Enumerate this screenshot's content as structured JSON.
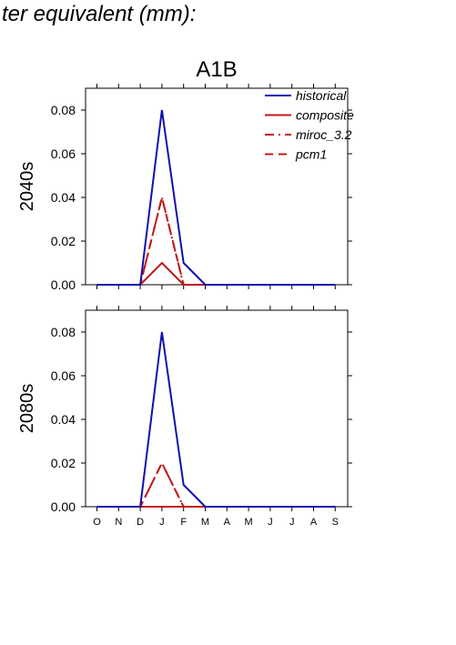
{
  "figure_title": "ter equivalent (mm):",
  "colors": {
    "historical": "#1010b0",
    "scenario": "#c01818",
    "axis": "#000000"
  },
  "chart_data": [
    {
      "type": "line",
      "title": "A1B",
      "ylabel": "2040s",
      "ylim": [
        0,
        0.09
      ],
      "yticks": [
        "0.00",
        "0.02",
        "0.04",
        "0.06",
        "0.08"
      ],
      "categories": [
        "O",
        "N",
        "D",
        "J",
        "F",
        "M",
        "A",
        "M",
        "J",
        "J",
        "A",
        "S"
      ],
      "show_xtick_labels": false,
      "legend": "top-right",
      "series": [
        {
          "name": "historical",
          "style": "solid",
          "color": "#1010b0",
          "values": [
            0,
            0,
            0,
            0.08,
            0.01,
            0,
            0,
            0,
            0,
            0,
            0,
            0
          ]
        },
        {
          "name": "composite",
          "style": "solid",
          "color": "#c01818",
          "values": [
            0,
            0,
            0,
            0.01,
            0,
            0,
            0,
            0,
            0,
            0,
            0,
            0
          ]
        },
        {
          "name": "miroc_3.2",
          "style": "dashdot",
          "color": "#c01818",
          "values": [
            0,
            0,
            0,
            0.04,
            0,
            0,
            0,
            0,
            0,
            0,
            0,
            0
          ]
        },
        {
          "name": "pcm1",
          "style": "dash",
          "color": "#c01818",
          "values": [
            0,
            0,
            0,
            0.04,
            0,
            0,
            0,
            0,
            0,
            0,
            0,
            0
          ]
        }
      ]
    },
    {
      "type": "line",
      "title": "",
      "ylabel": "2080s",
      "ylim": [
        0,
        0.09
      ],
      "yticks": [
        "0.00",
        "0.02",
        "0.04",
        "0.06",
        "0.08"
      ],
      "categories": [
        "O",
        "N",
        "D",
        "J",
        "F",
        "M",
        "A",
        "M",
        "J",
        "J",
        "A",
        "S"
      ],
      "show_xtick_labels": true,
      "legend": "none",
      "series": [
        {
          "name": "historical",
          "style": "solid",
          "color": "#1010b0",
          "values": [
            0,
            0,
            0,
            0.08,
            0.01,
            0,
            0,
            0,
            0,
            0,
            0,
            0
          ]
        },
        {
          "name": "composite",
          "style": "solid",
          "color": "#c01818",
          "values": [
            0,
            0,
            0,
            0,
            0,
            0,
            0,
            0,
            0,
            0,
            0,
            0
          ]
        },
        {
          "name": "miroc_3.2",
          "style": "dashdot",
          "color": "#c01818",
          "values": [
            0,
            0,
            0,
            0.02,
            0,
            0,
            0,
            0,
            0,
            0,
            0,
            0
          ]
        },
        {
          "name": "pcm1",
          "style": "dash",
          "color": "#c01818",
          "values": [
            0,
            0,
            0,
            0.02,
            0,
            0,
            0,
            0,
            0,
            0,
            0,
            0
          ]
        }
      ]
    }
  ]
}
